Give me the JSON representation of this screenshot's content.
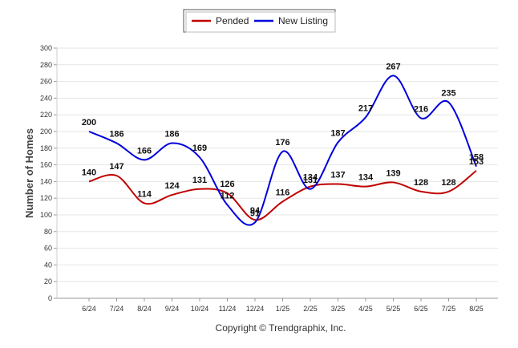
{
  "chart_data": {
    "type": "line",
    "categories": [
      "6/24",
      "7/24",
      "8/24",
      "9/24",
      "10/24",
      "11/24",
      "12/24",
      "1/25",
      "2/25",
      "3/25",
      "4/25",
      "5/25",
      "6/25",
      "7/25",
      "8/25"
    ],
    "series": [
      {
        "name": "Pended",
        "color": "#c00000",
        "values": [
          140,
          147,
          114,
          124,
          131,
          126,
          94,
          116,
          134,
          137,
          134,
          139,
          128,
          128,
          153
        ]
      },
      {
        "name": "New Listing",
        "color": "#0000dd",
        "values": [
          200,
          186,
          166,
          186,
          169,
          112,
          91,
          176,
          131,
          187,
          217,
          267,
          216,
          235,
          158
        ]
      }
    ],
    "ylabel": "Number of Homes",
    "xlabel": "",
    "ylim": [
      0,
      300
    ],
    "yticks": [
      0,
      20,
      40,
      60,
      80,
      100,
      120,
      140,
      160,
      180,
      200,
      220,
      240,
      260,
      280,
      300
    ],
    "grid": true,
    "legend_position": "top-center",
    "footer": "Copyright © Trendgraphix, Inc."
  }
}
